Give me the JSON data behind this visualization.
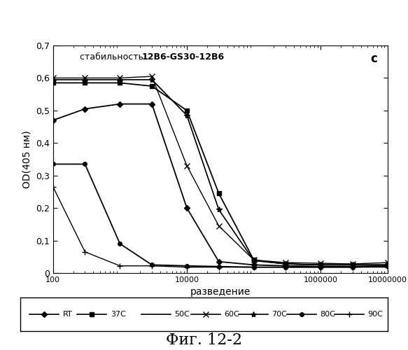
{
  "title_normal": "стабильность ",
  "title_bold": "12B6-GS30-12B6",
  "subtitle_letter": "c",
  "xlabel": "разведение",
  "ylabel": "OD(405 нм)",
  "fig_label": "Фиг. 12-2",
  "xlim_log": [
    100,
    10000000
  ],
  "ylim": [
    0,
    0.7
  ],
  "ytick_labels": [
    "0",
    "0,1",
    "0,2",
    "0,3",
    "0,4",
    "0,5",
    "0,6",
    "0,7"
  ],
  "ytick_vals": [
    0,
    0.1,
    0.2,
    0.3,
    0.4,
    0.5,
    0.6,
    0.7
  ],
  "xtick_vals": [
    100,
    10000,
    1000000,
    10000000
  ],
  "xtick_labels": [
    "100",
    "10000",
    "1000000",
    "10000000"
  ],
  "series": {
    "RT": {
      "x": [
        100,
        300,
        1000,
        3000,
        10000,
        30000,
        100000,
        300000,
        1000000,
        3000000,
        10000000
      ],
      "y": [
        0.47,
        0.505,
        0.52,
        0.52,
        0.2,
        0.035,
        0.025,
        0.022,
        0.02,
        0.02,
        0.022
      ],
      "marker": "D",
      "markersize": 4
    },
    "37C": {
      "x": [
        100,
        300,
        1000,
        3000,
        10000,
        30000,
        100000,
        300000,
        1000000,
        3000000,
        10000000
      ],
      "y": [
        0.585,
        0.585,
        0.585,
        0.575,
        0.5,
        0.245,
        0.04,
        0.028,
        0.025,
        0.025,
        0.025
      ],
      "marker": "s",
      "markersize": 4
    },
    "50C": {
      "x": [
        100,
        300,
        1000,
        3000,
        10000,
        30000,
        100000,
        300000,
        1000000,
        3000000,
        10000000
      ],
      "y": [
        0.595,
        0.595,
        0.595,
        0.595,
        0.485,
        0.195,
        0.038,
        0.028,
        0.025,
        0.025,
        0.025
      ],
      "marker": null,
      "markersize": 4
    },
    "60C": {
      "x": [
        100,
        300,
        1000,
        3000,
        10000,
        30000,
        100000,
        300000,
        1000000,
        3000000,
        10000000
      ],
      "y": [
        0.6,
        0.6,
        0.6,
        0.605,
        0.33,
        0.145,
        0.04,
        0.032,
        0.03,
        0.028,
        0.032
      ],
      "marker": "x",
      "markersize": 6
    },
    "70C": {
      "x": [
        100,
        300,
        1000,
        3000,
        10000,
        30000,
        100000,
        300000,
        1000000,
        3000000,
        10000000
      ],
      "y": [
        0.595,
        0.595,
        0.595,
        0.595,
        0.485,
        0.195,
        0.038,
        0.028,
        0.025,
        0.025,
        0.025
      ],
      "marker": "*",
      "markersize": 6
    },
    "80C": {
      "x": [
        100,
        300,
        1000,
        3000,
        10000,
        30000,
        100000,
        300000,
        1000000,
        3000000,
        10000000
      ],
      "y": [
        0.335,
        0.335,
        0.09,
        0.025,
        0.022,
        0.02,
        0.018,
        0.018,
        0.018,
        0.018,
        0.022
      ],
      "marker": "o",
      "markersize": 4
    },
    "90C": {
      "x": [
        100,
        300,
        1000,
        3000,
        10000,
        30000,
        100000,
        300000,
        1000000,
        3000000,
        10000000
      ],
      "y": [
        0.265,
        0.065,
        0.022,
        0.022,
        0.018,
        0.018,
        0.018,
        0.018,
        0.018,
        0.018,
        0.018
      ],
      "marker": "+",
      "markersize": 6
    }
  },
  "legend_order": [
    "RT",
    "37C",
    "50C",
    "60C",
    "70C",
    "80C",
    "90C"
  ],
  "background_color": "#ffffff"
}
